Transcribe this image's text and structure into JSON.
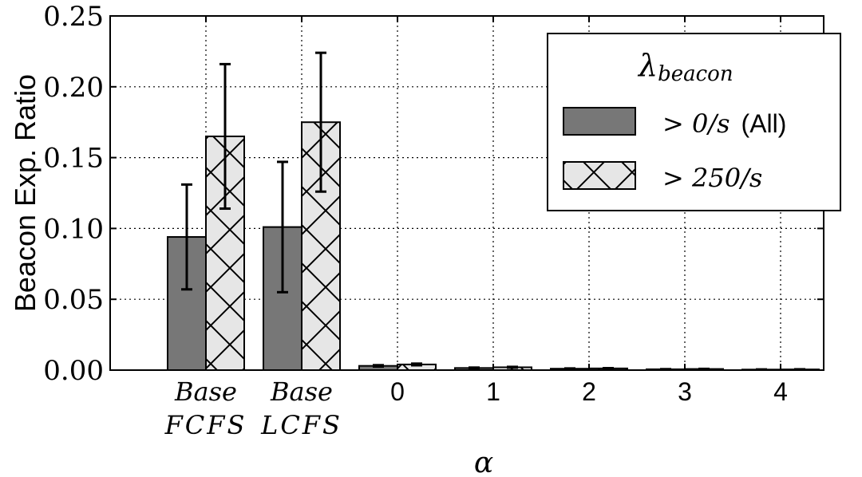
{
  "chart_data": {
    "type": "bar",
    "xlabel": "α",
    "ylabel": "Beacon Exp. Ratio",
    "ylim": [
      0,
      0.25
    ],
    "yticks": [
      "0.00",
      "0.05",
      "0.10",
      "0.15",
      "0.20",
      "0.25"
    ],
    "categories": [
      {
        "line1": "Base",
        "line2": "FCFS",
        "italic": true
      },
      {
        "line1": "Base",
        "line2": "LCFS",
        "italic": true
      },
      {
        "line1": "0",
        "line2": "",
        "italic": false
      },
      {
        "line1": "1",
        "line2": "",
        "italic": false
      },
      {
        "line1": "2",
        "line2": "",
        "italic": false
      },
      {
        "line1": "3",
        "line2": "",
        "italic": false
      },
      {
        "line1": "4",
        "line2": "",
        "italic": false
      }
    ],
    "series": [
      {
        "name_math": "> 0/s",
        "name_suffix": "(All)",
        "values": [
          0.094,
          0.101,
          0.003,
          0.0015,
          0.001,
          0.0006,
          0.0004
        ],
        "errors": [
          0.037,
          0.046,
          0.0005,
          0.0003,
          0.0002,
          0.0001,
          0.0001
        ],
        "color": "#777777",
        "pattern": "solid"
      },
      {
        "name_math": "> 250/s",
        "name_suffix": "",
        "values": [
          0.165,
          0.175,
          0.004,
          0.002,
          0.0012,
          0.0008,
          0.0005
        ],
        "errors": [
          0.051,
          0.049,
          0.0006,
          0.0003,
          0.0002,
          0.0001,
          0.0001
        ],
        "color": "#e6e6e6",
        "pattern": "crosshatch"
      }
    ],
    "legend": {
      "title_main": "λ",
      "title_sub": "beacon",
      "placement": "top-right"
    },
    "grid": true
  }
}
